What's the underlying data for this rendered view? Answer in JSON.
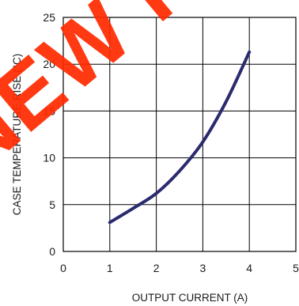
{
  "chart_data": {
    "type": "line",
    "title": "",
    "xlabel": "OUTPUT CURRENT (A)",
    "ylabel": "CASE TEMPERATURE RISE (°C)",
    "xlim": [
      0,
      5
    ],
    "ylim": [
      0,
      25
    ],
    "x_ticks": [
      "0",
      "1",
      "2",
      "3",
      "4",
      "5"
    ],
    "y_ticks": [
      "0",
      "5",
      "10",
      "15",
      "20",
      "25"
    ],
    "grid": true,
    "series": [
      {
        "x": [
          1.0,
          1.5,
          2.0,
          2.5,
          3.0,
          3.5,
          4.0
        ],
        "y": [
          3.1,
          4.6,
          6.2,
          8.6,
          11.7,
          16.0,
          21.3
        ]
      }
    ],
    "colors": {
      "line": "#2a2a6e",
      "grid": "#000000",
      "watermark": "#ff2a00"
    },
    "watermark_text": "NEW REFER"
  }
}
